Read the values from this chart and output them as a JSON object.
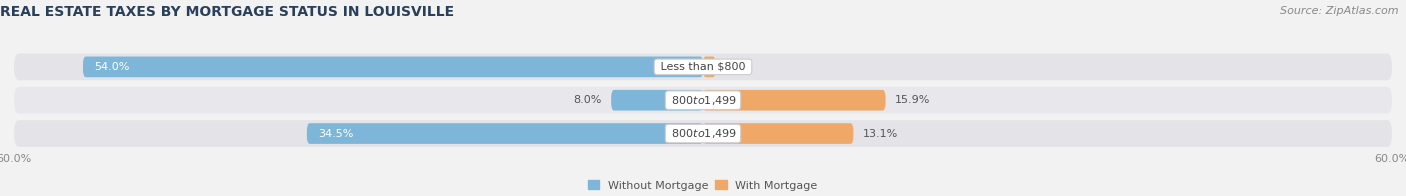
{
  "title": "REAL ESTATE TAXES BY MORTGAGE STATUS IN LOUISVILLE",
  "source": "Source: ZipAtlas.com",
  "rows": [
    {
      "label": "Less than $800",
      "without_mortgage": 54.0,
      "with_mortgage": 1.1
    },
    {
      "label": "$800 to $1,499",
      "without_mortgage": 8.0,
      "with_mortgage": 15.9
    },
    {
      "label": "$800 to $1,499",
      "without_mortgage": 34.5,
      "with_mortgage": 13.1
    }
  ],
  "xlim": [
    -60,
    60
  ],
  "color_without": "#7EB6D9",
  "color_with": "#F0A868",
  "color_without_light": "#A8CEEA",
  "bar_height": 0.62,
  "row_bg_color": "#e8e8eb",
  "background_color": "#f2f2f2",
  "legend_labels": [
    "Without Mortgage",
    "With Mortgage"
  ],
  "title_fontsize": 10,
  "source_fontsize": 8,
  "label_fontsize": 8,
  "value_fontsize": 8,
  "tick_fontsize": 8,
  "title_color": "#2a3f5a",
  "source_color": "#888888",
  "value_color_inside": "#ffffff",
  "value_color_outside": "#555555",
  "center_label_color": "#444444"
}
